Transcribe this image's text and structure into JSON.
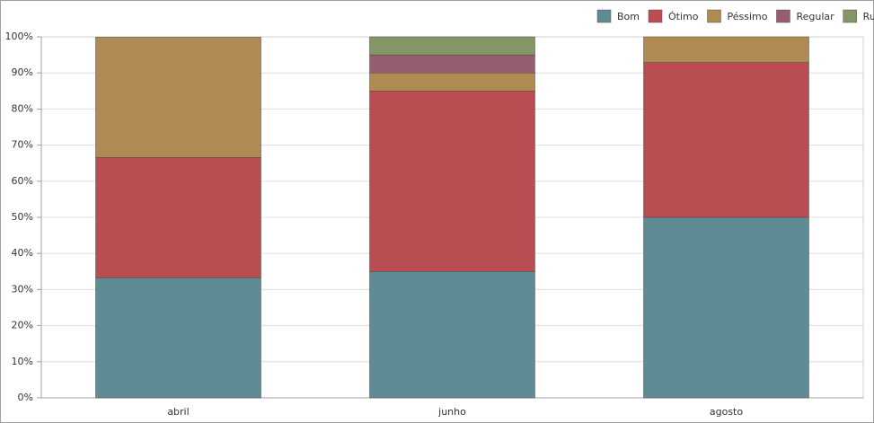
{
  "chart_data": {
    "type": "stacked_bar_100",
    "categories": [
      "abril",
      "junho",
      "agosto"
    ],
    "series": [
      {
        "name": "Bom",
        "color": "#5f8b95",
        "values": [
          33.3,
          35,
          50
        ]
      },
      {
        "name": "Ótimo",
        "color": "#ba4d51",
        "values": [
          33.3,
          50,
          42.9
        ]
      },
      {
        "name": "Péssimo",
        "color": "#af8a53",
        "values": [
          33.3,
          5,
          7.1
        ]
      },
      {
        "name": "Regular",
        "color": "#955f71",
        "values": [
          0,
          5,
          0
        ]
      },
      {
        "name": "Ruim",
        "color": "#859666",
        "values": [
          0,
          5,
          0
        ]
      }
    ],
    "ylim": [
      0,
      100
    ],
    "yticks": [
      {
        "value": 0,
        "label": "0%"
      },
      {
        "value": 10,
        "label": "10%"
      },
      {
        "value": 20,
        "label": "20%"
      },
      {
        "value": 30,
        "label": "30%"
      },
      {
        "value": 40,
        "label": "40%"
      },
      {
        "value": 50,
        "label": "50%"
      },
      {
        "value": 60,
        "label": "60%"
      },
      {
        "value": 70,
        "label": "70%"
      },
      {
        "value": 80,
        "label": "80%"
      },
      {
        "value": 90,
        "label": "90%"
      },
      {
        "value": 100,
        "label": "100%"
      }
    ],
    "grid": true,
    "legend": "top-right"
  }
}
